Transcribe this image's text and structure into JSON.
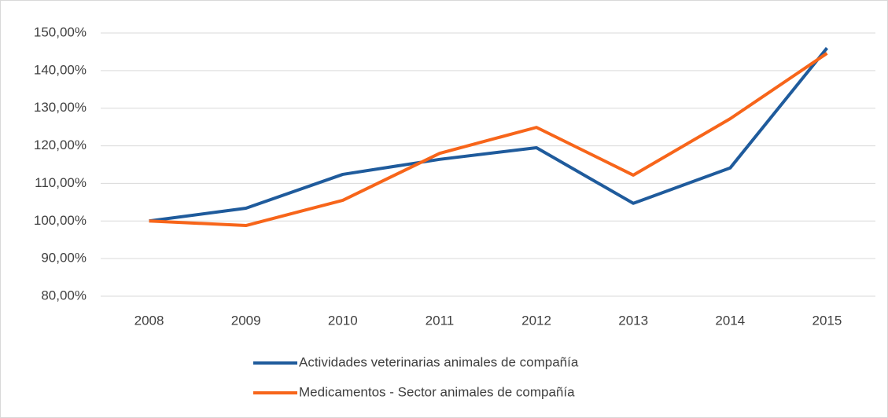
{
  "chart_data": {
    "type": "line",
    "categories": [
      "2008",
      "2009",
      "2010",
      "2011",
      "2012",
      "2013",
      "2014",
      "2015"
    ],
    "series": [
      {
        "name": "Actividades veterinarias animales de compañía",
        "color": "#1f5b9c",
        "values": [
          100,
          103.4,
          112.4,
          116.4,
          119.5,
          104.7,
          114.1,
          146
        ]
      },
      {
        "name": "Medicamentos - Sector animales de compañía",
        "color": "#f7651a",
        "values": [
          100,
          98.8,
          105.5,
          118,
          124.9,
          112.2,
          127.2,
          144.6
        ]
      }
    ],
    "ylim": [
      80,
      150
    ],
    "yticks": [
      {
        "value": 80,
        "label": "80,00%"
      },
      {
        "value": 90,
        "label": "90,00%"
      },
      {
        "value": 100,
        "label": "100,00%"
      },
      {
        "value": 110,
        "label": "110,00%"
      },
      {
        "value": 120,
        "label": "120,00%"
      },
      {
        "value": 130,
        "label": "130,00%"
      },
      {
        "value": 140,
        "label": "140,00%"
      },
      {
        "value": 150,
        "label": "150,00%"
      }
    ],
    "grid": true,
    "legend": "bottom"
  }
}
